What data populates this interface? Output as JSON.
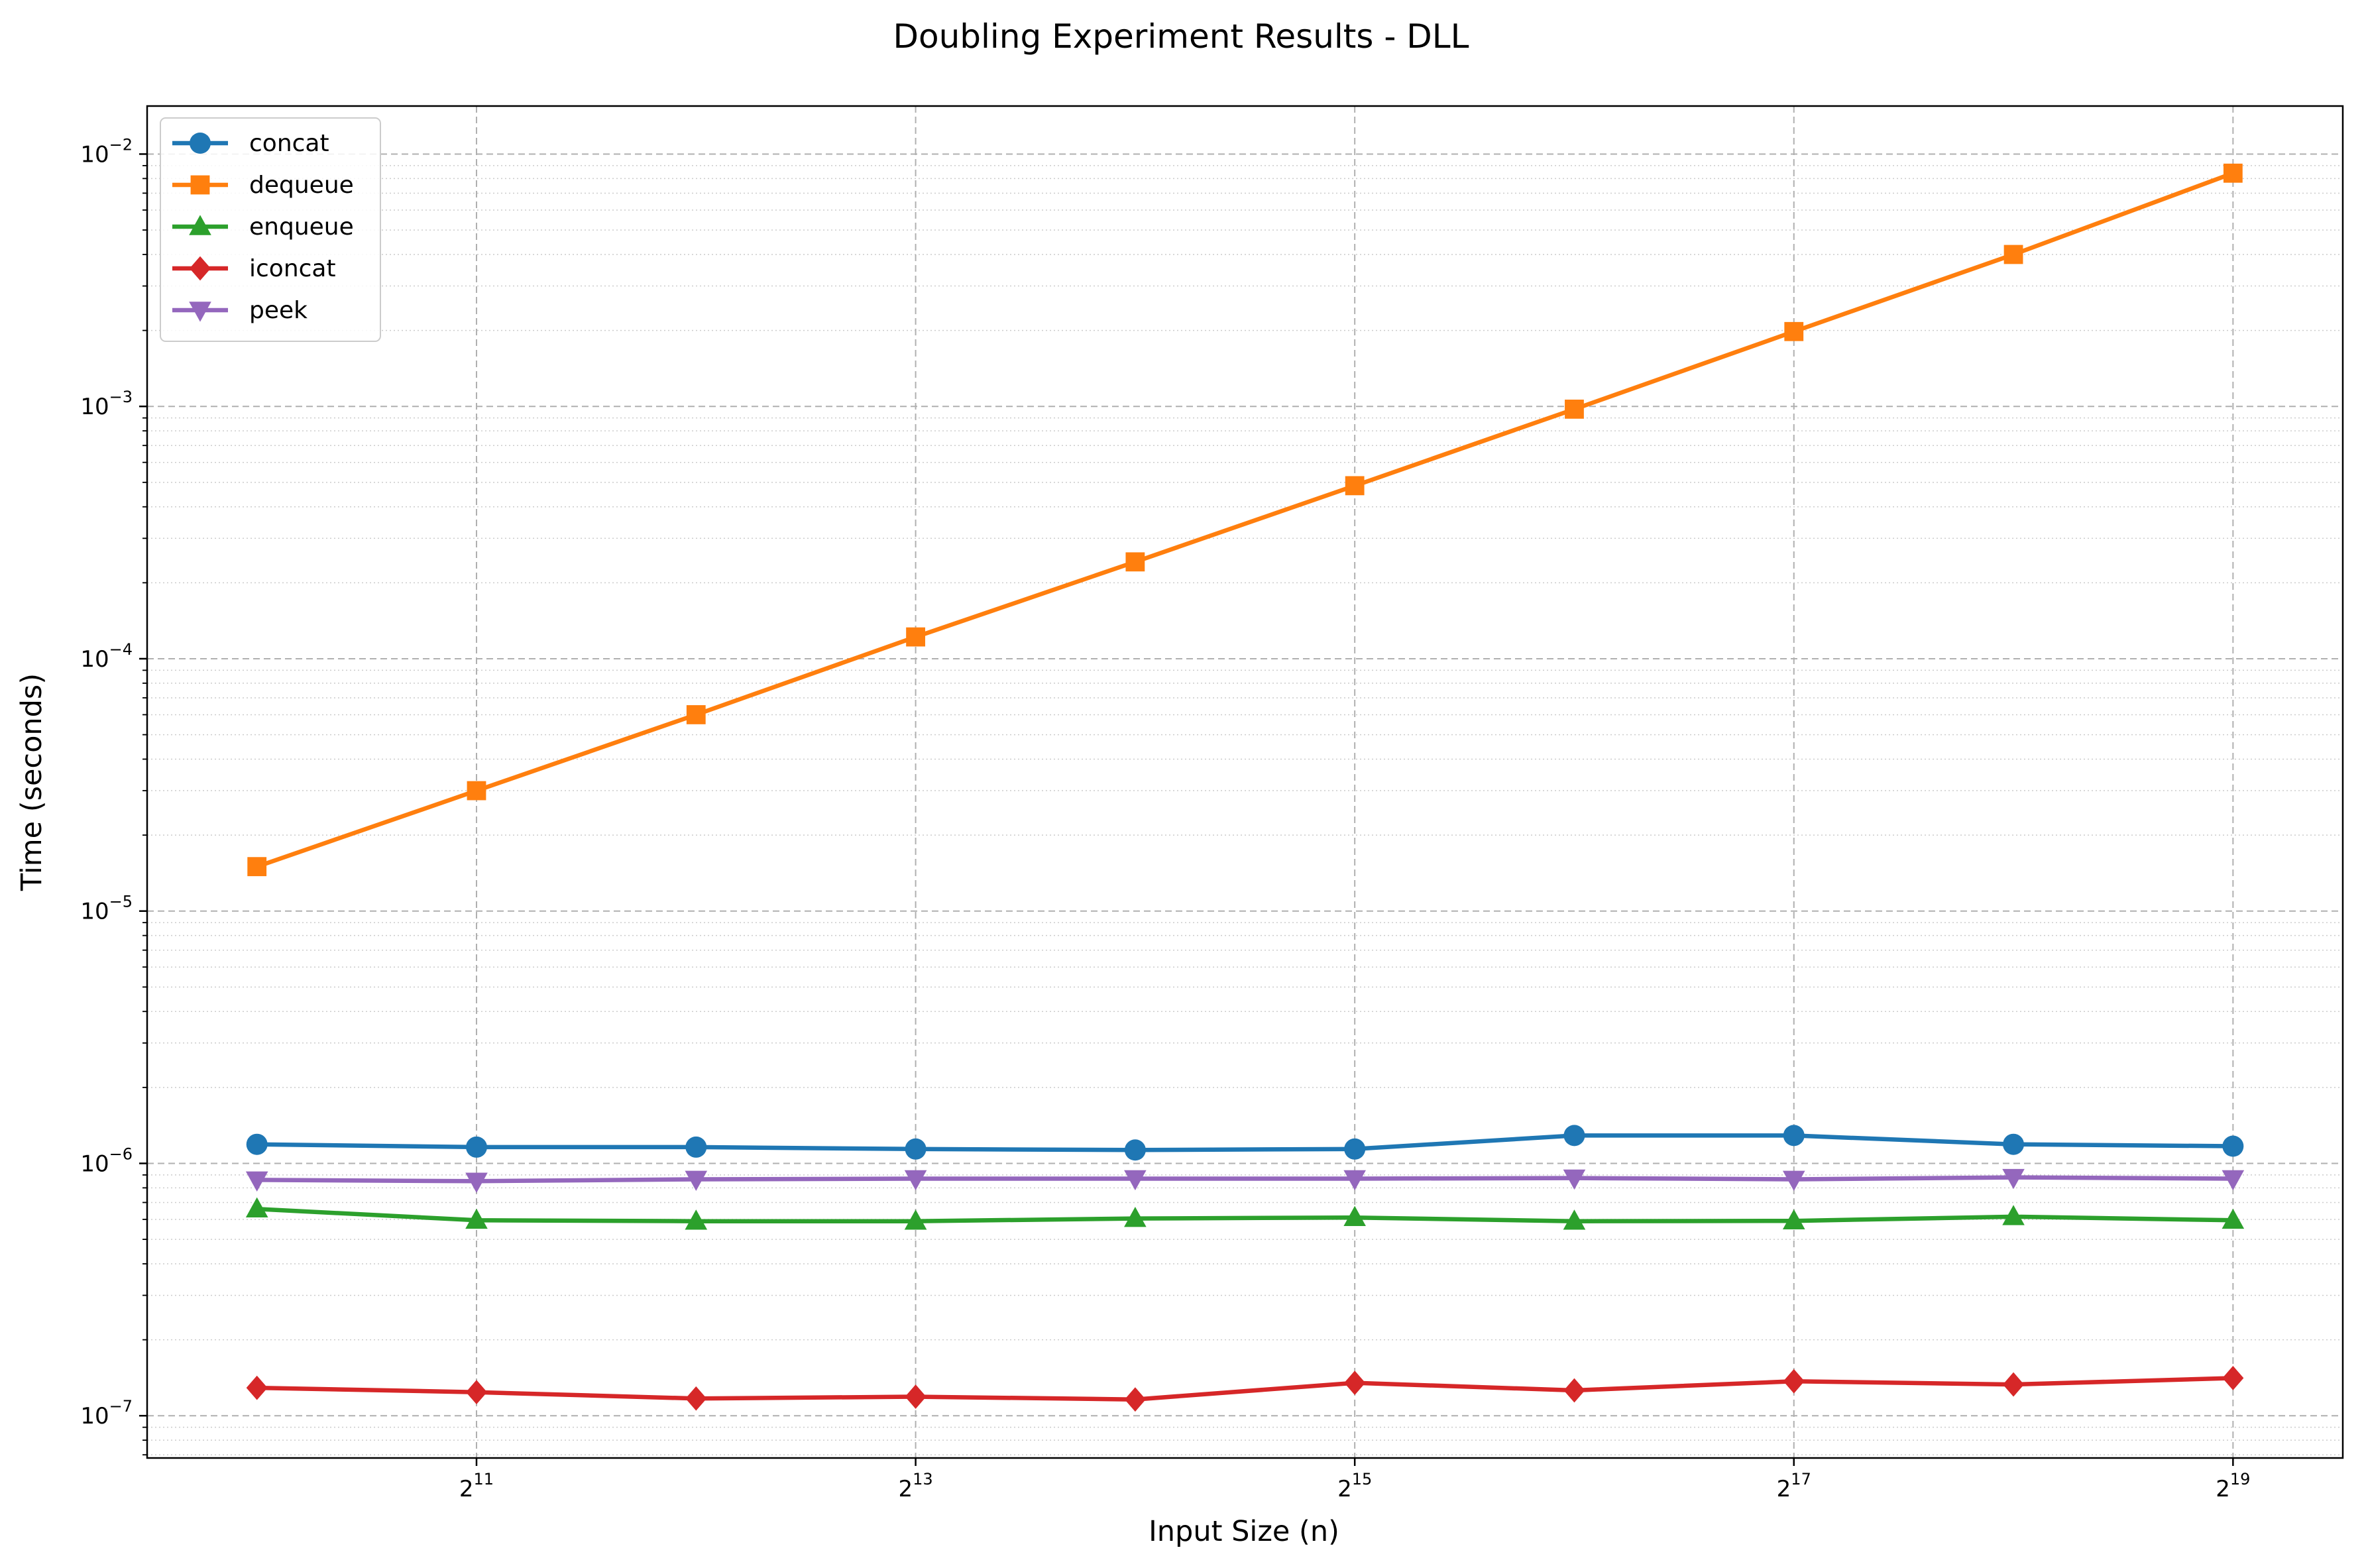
{
  "chart_data": {
    "type": "line",
    "title": "Doubling Experiment Results - DLL",
    "xlabel": "Input Size (n)",
    "ylabel": "Time (seconds)",
    "x_scale": "log2",
    "y_scale": "log10",
    "xlim": [
      724,
      741455
    ],
    "ylim": [
      6.8e-08,
      0.0155
    ],
    "x_ticks": [
      {
        "value": 2048,
        "base": "2",
        "exp": "11"
      },
      {
        "value": 8192,
        "base": "2",
        "exp": "13"
      },
      {
        "value": 32768,
        "base": "2",
        "exp": "15"
      },
      {
        "value": 131072,
        "base": "2",
        "exp": "17"
      },
      {
        "value": 524288,
        "base": "2",
        "exp": "19"
      }
    ],
    "y_ticks": [
      {
        "value": 1e-07,
        "base": "10",
        "exp": "−7"
      },
      {
        "value": 1e-06,
        "base": "10",
        "exp": "−6"
      },
      {
        "value": 1e-05,
        "base": "10",
        "exp": "−5"
      },
      {
        "value": 0.0001,
        "base": "10",
        "exp": "−4"
      },
      {
        "value": 0.001,
        "base": "10",
        "exp": "−3"
      },
      {
        "value": 0.01,
        "base": "10",
        "exp": "−2"
      }
    ],
    "grid": true,
    "legend_position": "top-left",
    "x": [
      1024,
      2048,
      4096,
      8192,
      16384,
      32768,
      65536,
      131072,
      262144,
      524288
    ],
    "series": [
      {
        "name": "concat",
        "color": "#1f77b4",
        "marker": "circle",
        "values": [
          1.19e-06,
          1.16e-06,
          1.16e-06,
          1.14e-06,
          1.13e-06,
          1.14e-06,
          1.29e-06,
          1.29e-06,
          1.19e-06,
          1.17e-06
        ]
      },
      {
        "name": "dequeue",
        "color": "#ff7f0e",
        "marker": "square",
        "values": [
          1.5e-05,
          3e-05,
          6e-05,
          0.000122,
          0.000242,
          0.000485,
          0.000975,
          0.00198,
          0.004,
          0.0084
        ]
      },
      {
        "name": "enqueue",
        "color": "#2ca02c",
        "marker": "triangle-up",
        "values": [
          6.6e-07,
          5.95e-07,
          5.9e-07,
          5.9e-07,
          6.05e-07,
          6.1e-07,
          5.9e-07,
          5.92e-07,
          6.15e-07,
          5.95e-07
        ]
      },
      {
        "name": "iconcat",
        "color": "#d62728",
        "marker": "diamond",
        "values": [
          1.29e-07,
          1.24e-07,
          1.17e-07,
          1.19e-07,
          1.16e-07,
          1.35e-07,
          1.26e-07,
          1.37e-07,
          1.33e-07,
          1.41e-07
        ]
      },
      {
        "name": "peek",
        "color": "#9467bd",
        "marker": "triangle-down",
        "values": [
          8.6e-07,
          8.5e-07,
          8.65e-07,
          8.7e-07,
          8.7e-07,
          8.7e-07,
          8.75e-07,
          8.65e-07,
          8.8e-07,
          8.7e-07
        ]
      }
    ]
  }
}
